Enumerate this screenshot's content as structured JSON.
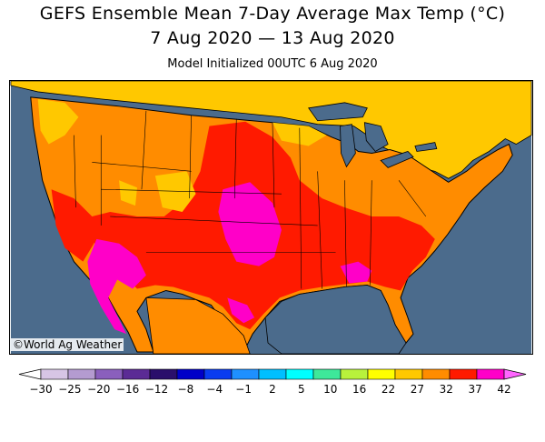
{
  "header": {
    "title": "GEFS Ensemble Mean 7-Day Average Max Temp (°C)",
    "date_range": "7 Aug 2020 — 13 Aug 2020",
    "init": "Model Initialized 00UTC 6 Aug 2020"
  },
  "map": {
    "region": "Continental United States",
    "ocean_color": "#4b6b8c",
    "credit": "©World Ag Weather"
  },
  "colorbar": {
    "labels": [
      "-30",
      "-25",
      "-20",
      "-16",
      "-12",
      "-8",
      "-4",
      "-1",
      "2",
      "5",
      "10",
      "16",
      "22",
      "27",
      "32",
      "37",
      "42"
    ],
    "colors": [
      "#d7c5e5",
      "#b49bd0",
      "#8a5fbd",
      "#5b2b95",
      "#2a0f6b",
      "#0000c8",
      "#0a3cf0",
      "#1e90ff",
      "#00bfff",
      "#00ffff",
      "#3ee89a",
      "#b8f23c",
      "#ffff00",
      "#ffc800",
      "#ff8c00",
      "#ff1a00",
      "#ff00c8"
    ],
    "low_end": "#ffffff",
    "high_end": "#ff66ff"
  }
}
